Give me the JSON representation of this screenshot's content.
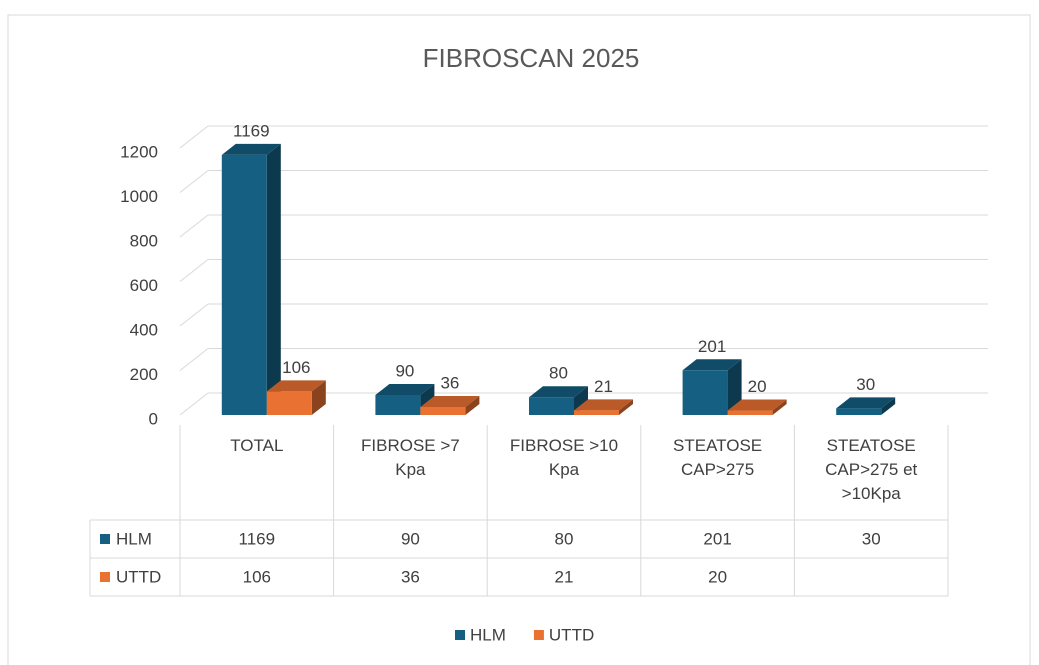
{
  "chart_data": {
    "type": "bar3d",
    "title": "FIBROSCAN 2025",
    "categories": [
      "TOTAL",
      "FIBROSE >7 Kpa",
      "FIBROSE >10 Kpa",
      "STEATOSE CAP>275",
      "STEATOSE CAP>275 et >10Kpa"
    ],
    "series": [
      {
        "name": "HLM",
        "color": "#156082",
        "values": [
          1169,
          90,
          80,
          201,
          30
        ]
      },
      {
        "name": "UTTD",
        "color": "#e97132",
        "values": [
          106,
          36,
          21,
          20,
          null
        ]
      }
    ],
    "ylim": [
      0,
      1200
    ],
    "yticks": [
      0,
      200,
      400,
      600,
      800,
      1000,
      1200
    ],
    "grid": true,
    "legend": "bottom",
    "data_table": true
  }
}
